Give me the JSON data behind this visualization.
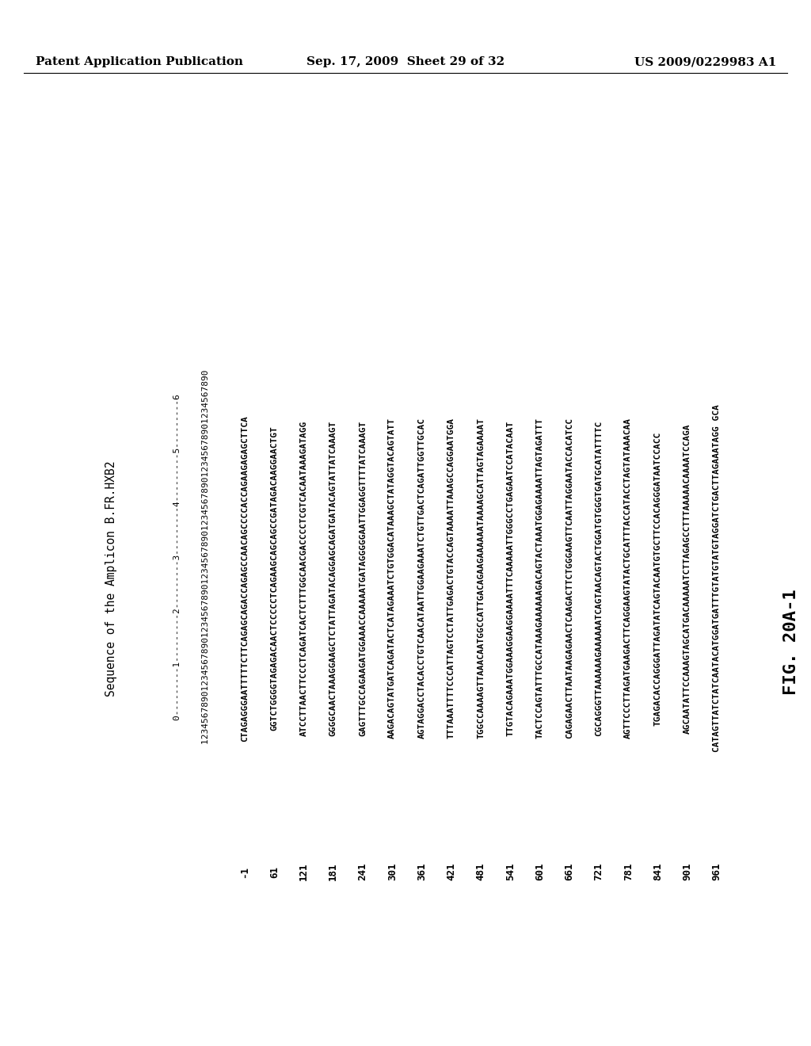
{
  "header_left": "Patent Application Publication",
  "header_center": "Sep. 17, 2009  Sheet 29 of 32",
  "header_right": "US 2009/0229983 A1",
  "title_line": "Sequence of the Amplicon B.FR.HXB2",
  "ruler_line1": "        0---------1---------2---------3---------4---------5---------6",
  "ruler_line2": "        1234567890123456789012345678901234567890123456789012345678901234567890",
  "sequence_data": [
    [
      "-1",
      "CTAGAGGGAATTTTTCTTCAGAGCAGACCAGAGCCAACAGCCCCACCAGAAGAGAGCTTCA"
    ],
    [
      "61",
      "GGTCTGGGGTAGAGACAACTCCCCCTCAGAAGCAGCAGCCGATAGACAAGGAACTGT"
    ],
    [
      "121",
      "ATCCTTAACTTCCCTCAGATCACTCTTTGGCAACGACCCCTCGTCACAATAAAGATAGG"
    ],
    [
      "181",
      "GGGGCAACTAAAGGAAGCTCTATTAGATACAGGAGCAGATGATACAGTATTATCAAAGT"
    ],
    [
      "241",
      "GAGTTTGCCAGAAGATGGAAACCAAAAATGATAGGGGGAATTGGAGGTTTTATCAAAGT"
    ],
    [
      "301",
      "AAGACAGTATGATCAGATACTCATAGAAATCTGTGGACATAAAGCTATAGGTACAGTATT"
    ],
    [
      "361",
      "AGTAGGACCTACACCTGTCAACATAATTGGAAGAAATCTGTTGACTCAGATTGGTTGCAC"
    ],
    [
      "421",
      "TTTAAATTTTCCCATTAGTCCTATTGAGACTGTACCAGTAAAATTAAAGCCAGGAATGGA"
    ],
    [
      "481",
      "TGGCCAAAAGTTAAACAATGGCCATTGACAGAAGAAAAAATAAAAGCATTAGTAGAAAAT"
    ],
    [
      "541",
      "TTGTACAGAAATGGAAAGGAAGGAAAATTTCAAAAATTGGGCCTGAGAATCCATACAAT"
    ],
    [
      "601",
      "TACTCCAGTATTTGCCATAAAGAAAAAAGACAGTACTAAATGGAGAAAATTAGTAGATTT"
    ],
    [
      "661",
      "CAGAGAACTTAATAAGAGAACTCAAGACTTCTGGGAAGTTCAATTAGGAATACCACATCC"
    ],
    [
      "721",
      "CGCAGGGTTAAAAAAGAAAAAATCAGTAACAGTACTGGATGTGGGTGATGCATATTTTC"
    ],
    [
      "781",
      "AGTTCCCTTAGATGAAGACTTCAGGAAGTATACTGCATTTACCATACCTAGTATAAACAA"
    ],
    [
      "841",
      "TGAGACACCAGGGATTAGATATCAGTACAATGTGCTTCCACAGGGATAATCCACC"
    ],
    [
      "901",
      "AGCAATATTCCAAAGTAGCATGACAAAAATCTTAGAGCCTTTAAAAACAAAATCCAGA"
    ],
    [
      "961",
      "CATAGTTATCTATCAATACATGGATGATTTGTATGTATGTAGGATCTGACTTAGAAATAGG GCA"
    ]
  ],
  "figure_label": "FIG. 20A-1",
  "bg_color": "#ffffff",
  "text_color": "#000000",
  "header_fontsize": 11,
  "seq_fontsize": 8.0,
  "title_fontsize": 10.5,
  "fig_label_fontsize": 16
}
